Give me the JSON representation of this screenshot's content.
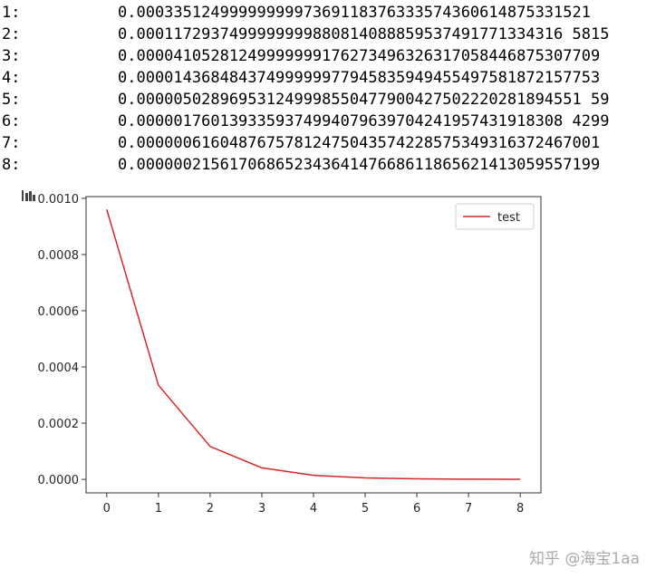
{
  "output_lines": [
    {
      "label": "1:",
      "value": "0.0003351249999999997369118376333574360614875331521"
    },
    {
      "label": "2:",
      "value": "0.0001172937499999999880814088859537491771334316 5815"
    },
    {
      "label": "3:",
      "value": "0.00004105281249999999176273496326317058446875307709"
    },
    {
      "label": "4:",
      "value": "0.00001436848437499999977945835949455497581872157753"
    },
    {
      "label": "5:",
      "value": "0.000005028969531249998550477900427502220281894551 59"
    },
    {
      "label": "6:",
      "value": "0.0000017601393359374994079639704241957431918308 4299"
    },
    {
      "label": "7:",
      "value": "0.00000061604876757812475043574228575349316372467001"
    },
    {
      "label": "8:",
      "value": "0.00000021561706865234364147668611865621413059557199"
    }
  ],
  "chart_data": {
    "type": "line",
    "x": [
      0,
      1,
      2,
      3,
      4,
      5,
      6,
      7,
      8
    ],
    "series": [
      {
        "name": "test",
        "color": "#d62728",
        "values": [
          0.00096,
          0.000335,
          0.000117,
          4.11e-05,
          1.44e-05,
          5.03e-06,
          1.76e-06,
          6.16e-07,
          2.16e-07
        ]
      }
    ],
    "xlim": [
      -0.4,
      8.4
    ],
    "xticks": [
      0,
      1,
      2,
      3,
      4,
      5,
      6,
      7,
      8
    ],
    "ylim": [
      -4.8e-05,
      0.001006
    ],
    "yticks": [
      {
        "value": 0,
        "label": "0.0000"
      },
      {
        "value": 0.0002,
        "label": "0.0002"
      },
      {
        "value": 0.0004,
        "label": "0.0004"
      },
      {
        "value": 0.0006,
        "label": "0.0006"
      },
      {
        "value": 0.0008,
        "label": "0.0008"
      },
      {
        "value": 0.001,
        "label": "0.0010"
      }
    ],
    "legend": "upper right",
    "grid": false
  },
  "watermark": "知乎 @海宝1aa"
}
